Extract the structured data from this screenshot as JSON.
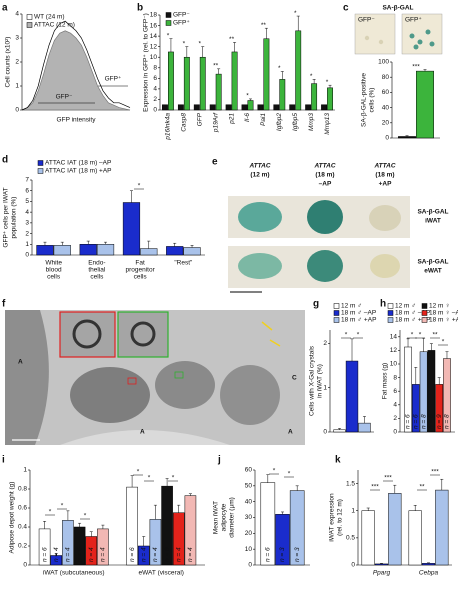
{
  "chart_data": [
    {
      "panel": "a",
      "type": "area",
      "xlabel": "GFP intensity",
      "ylabel": "Cell counts (x10²)",
      "x": [
        0,
        5,
        10,
        15,
        20,
        25,
        30,
        35,
        40,
        45,
        50,
        55,
        60,
        65,
        70,
        75,
        80,
        85,
        90,
        95,
        100
      ],
      "xlim": [
        0,
        100
      ],
      "ylim": [
        0,
        4
      ],
      "yticks": [
        0,
        1,
        2,
        3,
        4
      ],
      "legend": "upper left",
      "series": [
        {
          "name": "WT (24 m)",
          "color": "#000000",
          "values": [
            0,
            0.1,
            0.4,
            1.0,
            1.9,
            2.7,
            3.3,
            3.6,
            3.7,
            3.5,
            3.3,
            3.0,
            2.5,
            1.9,
            1.3,
            0.8,
            0.5,
            0.3,
            0.3,
            0.2,
            0.1
          ]
        },
        {
          "name": "ATTAC (12 m)",
          "color": "#b3b3b3",
          "fill": true,
          "values": [
            0,
            0.1,
            0.3,
            0.8,
            1.5,
            2.3,
            2.9,
            3.2,
            3.3,
            3.2,
            3.0,
            2.7,
            2.2,
            1.6,
            1.0,
            0.6,
            0.3,
            0.2,
            0.1,
            0.05,
            0
          ]
        }
      ],
      "annotations": [
        "GFP⁻",
        "GFP⁺"
      ]
    },
    {
      "panel": "b",
      "type": "bar",
      "ylabel": "Expression in GFP⁺ (rel. to GFP⁻)",
      "categories": [
        "p16Ink4a",
        "Casp8",
        "GFP",
        "p19Arf",
        "p21",
        "Il-6",
        "Pai1",
        "Igfbp2",
        "Igfbp5",
        "Mmp3",
        "Mmp13"
      ],
      "ylim": [
        0,
        18
      ],
      "yticks": [
        0,
        2,
        4,
        6,
        8,
        10,
        12,
        14,
        16,
        18
      ],
      "legend": "upper left",
      "series": [
        {
          "name": "GFP⁻",
          "color": "#111111",
          "values": [
            1,
            1,
            1,
            1,
            1,
            1,
            1,
            1,
            1,
            1,
            1
          ]
        },
        {
          "name": "GFP⁺",
          "color": "#3cb43c",
          "values": [
            11,
            10,
            10,
            6.8,
            11,
            1.8,
            13.5,
            5.8,
            15,
            5,
            4.2
          ],
          "errors": [
            2.5,
            2,
            2,
            1,
            1.8,
            0.3,
            2,
            1.5,
            2.8,
            0.8,
            0.5
          ]
        }
      ],
      "significance": [
        "*",
        "*",
        "*",
        "**",
        "**",
        "*",
        "**",
        "*",
        "*",
        "*",
        "*"
      ]
    },
    {
      "panel": "c",
      "type": "bar",
      "title": "SA-β-GAL",
      "image_labels": [
        "GFP⁻",
        "GFP⁺"
      ],
      "ylabel": [
        "SA-β-GAL-positive",
        "cells (%)"
      ],
      "ylim": [
        0,
        100
      ],
      "yticks": [
        0,
        20,
        40,
        60,
        80,
        100
      ],
      "series": [
        {
          "color": "#111111",
          "values": [
            2
          ],
          "errors": [
            1
          ]
        },
        {
          "color": "#3cb43c",
          "values": [
            88
          ],
          "errors": [
            2
          ]
        }
      ],
      "significance": [
        "***"
      ]
    },
    {
      "panel": "d",
      "type": "bar",
      "ylabel": [
        "GFP⁺ cells per IWAT",
        "population (%)"
      ],
      "categories": [
        [
          "White",
          "blood",
          "cells"
        ],
        [
          "Endo-",
          "thelial",
          "cells"
        ],
        [
          "Fat",
          "progenitor",
          "cells"
        ],
        [
          "\"Rest\""
        ]
      ],
      "ylim": [
        0,
        7
      ],
      "yticks": [
        0,
        1,
        2,
        3,
        4,
        5,
        6,
        7
      ],
      "legend": "upper left",
      "series": [
        {
          "name": "ATTAC IAT (18 m) –AP",
          "color": "#1a2ccc",
          "values": [
            0.9,
            1.0,
            4.9,
            0.8
          ],
          "errors": [
            0.3,
            0.3,
            1.1,
            0.3
          ]
        },
        {
          "name": "ATTAC IAT (18 m) +AP",
          "color": "#a9c2ea",
          "values": [
            0.9,
            1.0,
            0.6,
            0.7
          ],
          "errors": [
            0.3,
            0.2,
            0.7,
            0.2
          ]
        }
      ],
      "significance": [
        "*"
      ]
    },
    {
      "panel": "g",
      "type": "bar",
      "ylabel": [
        "Cells with X-Gal crystals",
        "in iWAT (%)"
      ],
      "ylim": [
        0,
        2.3
      ],
      "yticks": [
        0,
        1,
        2
      ],
      "legend": "upper center",
      "series": [
        {
          "name": "12 m ♂",
          "color": "#ffffff",
          "values": [
            0.05
          ],
          "errors": [
            0.03
          ]
        },
        {
          "name": "18 m ♂ –AP",
          "color": "#1a2ccc",
          "values": [
            1.6
          ],
          "errors": [
            0.5
          ]
        },
        {
          "name": "18 m ♂ +AP",
          "color": "#a9c2ea",
          "values": [
            0.2
          ],
          "errors": [
            0.15
          ]
        }
      ],
      "significance": [
        "*",
        "*"
      ]
    },
    {
      "panel": "h",
      "type": "bar",
      "ylabel": "Fat mass (g)",
      "ylim": [
        0,
        15
      ],
      "yticks": [
        0,
        2,
        4,
        6,
        8,
        10,
        12,
        14
      ],
      "legend": "upper right",
      "series": [
        {
          "name": "12 m ♂",
          "color": "#ffffff",
          "values": [
            12.5
          ],
          "errors": [
            1.2
          ],
          "n_labels": [
            "n = 6"
          ]
        },
        {
          "name": "18 m ♂ –AP",
          "color": "#1a2ccc",
          "values": [
            7
          ],
          "errors": [
            2.5
          ],
          "n_labels": [
            "n = 6"
          ]
        },
        {
          "name": "18 m ♂ +AP",
          "color": "#a9c2ea",
          "values": [
            11.8
          ],
          "errors": [
            2
          ],
          "n_labels": [
            "n = 8"
          ]
        },
        {
          "name": "12 m ♀",
          "color": "#111111",
          "values": [
            12
          ],
          "errors": [
            1
          ],
          "n_labels": [
            "n = 8"
          ]
        },
        {
          "name": "18 m ♀ –AP",
          "color": "#e3231b",
          "values": [
            7
          ],
          "errors": [
            1
          ],
          "n_labels": [
            "n = 9"
          ]
        },
        {
          "name": "18 m ♀ +AP",
          "color": "#f2b8b4",
          "values": [
            10.8
          ],
          "errors": [
            1
          ],
          "n_labels": [
            "n = 8"
          ]
        }
      ],
      "significance": [
        "*",
        "*",
        "**",
        "*"
      ]
    },
    {
      "panel": "i",
      "type": "bar",
      "ylabel": "Adipose depot weight (g)",
      "categories": [
        "iWAT (subcutaneous)",
        "eWAT (visceral)"
      ],
      "ylim": [
        0,
        1
      ],
      "yticks": [
        0,
        0.2,
        0.4,
        0.6,
        0.8,
        1
      ],
      "series": [
        {
          "color": "#ffffff",
          "values": [
            0.38,
            0.82
          ],
          "errors": [
            0.08,
            0.12
          ],
          "n_labels": [
            "n = 6",
            "n = 6"
          ]
        },
        {
          "color": "#1a2ccc",
          "values": [
            0.1,
            0.2
          ],
          "errors": [
            0.02,
            0.1
          ],
          "n_labels": [
            "n = 4",
            "n = 4"
          ]
        },
        {
          "color": "#a9c2ea",
          "values": [
            0.47,
            0.48
          ],
          "errors": [
            0.1,
            0.15
          ],
          "n_labels": [
            "n = 4",
            "n = 4"
          ]
        },
        {
          "color": "#111111",
          "values": [
            0.4,
            0.83
          ],
          "errors": [
            0.04,
            0.08
          ],
          "n_labels": [
            "n = 6",
            "n = 6"
          ]
        },
        {
          "color": "#e3231b",
          "values": [
            0.3,
            0.55
          ],
          "errors": [
            0.05,
            0.08
          ],
          "n_labels": [
            "n = 4",
            "n = 4"
          ]
        },
        {
          "color": "#f2b8b4",
          "values": [
            0.38,
            0.73
          ],
          "errors": [
            0.04,
            0.02
          ],
          "n_labels": [
            "n = 4",
            "n = 4"
          ]
        }
      ],
      "significance": [
        "*",
        "*",
        "*",
        "*",
        "*",
        "*"
      ]
    },
    {
      "panel": "j",
      "type": "bar",
      "ylabel": [
        "Mean iWAT",
        "adipocyte",
        "diameter (µm)"
      ],
      "ylim": [
        0,
        60
      ],
      "yticks": [
        0,
        10,
        20,
        30,
        40,
        50,
        60
      ],
      "series": [
        {
          "color": "#ffffff",
          "values": [
            52
          ],
          "errors": [
            5
          ],
          "n_labels": [
            "n = 6"
          ]
        },
        {
          "color": "#1a2ccc",
          "values": [
            32
          ],
          "errors": [
            1.5
          ],
          "n_labels": [
            "n = 3"
          ]
        },
        {
          "color": "#a9c2ea",
          "values": [
            47
          ],
          "errors": [
            3
          ],
          "n_labels": [
            "n = 3"
          ]
        }
      ],
      "significance": [
        "*",
        "*"
      ]
    },
    {
      "panel": "k",
      "type": "bar",
      "ylabel": [
        "iWAT expression",
        "(rel. to 12 m)"
      ],
      "categories": [
        "Pparg",
        "Cebpa"
      ],
      "ylim": [
        0,
        1.75
      ],
      "yticks": [
        0,
        0.5,
        1,
        1.5
      ],
      "series": [
        {
          "color": "#ffffff",
          "values": [
            1,
            1
          ],
          "errors": [
            0.05,
            0.1
          ]
        },
        {
          "color": "#1a2ccc",
          "values": [
            0.02,
            0.03
          ],
          "errors": [
            0.01,
            0.01
          ]
        },
        {
          "color": "#a9c2ea",
          "values": [
            1.32,
            1.38
          ],
          "errors": [
            0.15,
            0.2
          ]
        }
      ],
      "significance": [
        "***",
        "***",
        "**",
        "***"
      ]
    }
  ],
  "images": {
    "e": {
      "panel": "e",
      "columns": [
        [
          "ATTAC",
          "(12 m)"
        ],
        [
          "ATTAC",
          "(18 m)",
          "–AP"
        ],
        [
          "ATTAC",
          "(18 m)",
          "+AP"
        ]
      ],
      "rows": [
        [
          "SA-β-GAL",
          "iWAT"
        ],
        [
          "SA-β-GAL",
          "eWAT"
        ]
      ]
    },
    "f": {
      "panel": "f",
      "labels": [
        "A",
        "A",
        "A",
        "C"
      ]
    }
  }
}
